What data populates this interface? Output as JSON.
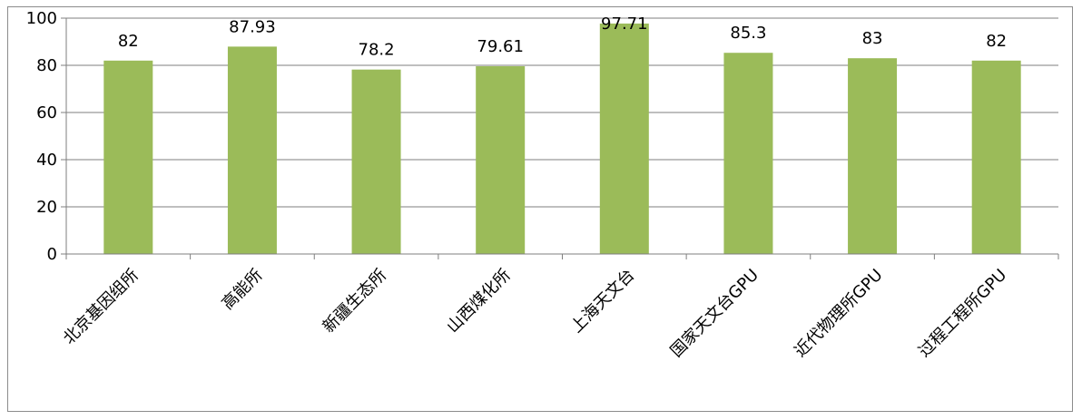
{
  "chart_data": {
    "type": "bar",
    "categories": [
      "北京基因组所",
      "高能所",
      "新疆生态所",
      "山西煤化所",
      "上海天文台",
      "国家天文台GPU",
      "近代物理所GPU",
      "过程工程所GPU"
    ],
    "values": [
      82,
      87.93,
      78.2,
      79.61,
      97.71,
      85.3,
      83,
      82
    ],
    "data_labels": [
      "82",
      "87.93",
      "78.2",
      "79.61",
      "97.71",
      "85.3",
      "83",
      "82"
    ],
    "ylim": [
      0,
      100
    ],
    "yticks": [
      0,
      20,
      40,
      60,
      80,
      100
    ],
    "ytick_labels": [
      "0",
      "20",
      "40",
      "60",
      "80",
      "100"
    ],
    "grid": true,
    "legend": "none",
    "bar_color": "#9bbb59",
    "grid_color": "#7f7f7f"
  }
}
